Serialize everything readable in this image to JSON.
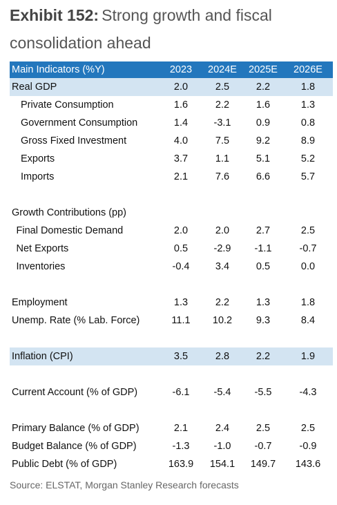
{
  "title": {
    "exhibit": "Exhibit 152:",
    "text": "Strong growth and fiscal consolidation ahead"
  },
  "table": {
    "header": {
      "label": "Main Indicators (%Y)",
      "columns": [
        "2023",
        "2024E",
        "2025E",
        "2026E"
      ]
    },
    "sections": [
      {
        "rows": [
          {
            "label": "Real GDP",
            "values": [
              "2.0",
              "2.5",
              "2.2",
              "1.8"
            ],
            "indent": 0,
            "highlight": true
          },
          {
            "label": "Private Consumption",
            "values": [
              "1.6",
              "2.2",
              "1.6",
              "1.3"
            ],
            "indent": 2,
            "highlight": false
          },
          {
            "label": "Government Consumption",
            "values": [
              "1.4",
              "-3.1",
              "0.9",
              "0.8"
            ],
            "indent": 2,
            "highlight": false
          },
          {
            "label": "Gross Fixed Investment",
            "values": [
              "4.0",
              "7.5",
              "9.2",
              "8.9"
            ],
            "indent": 2,
            "highlight": false
          },
          {
            "label": "Exports",
            "values": [
              "3.7",
              "1.1",
              "5.1",
              "5.2"
            ],
            "indent": 2,
            "highlight": false
          },
          {
            "label": "Imports",
            "values": [
              "2.1",
              "7.6",
              "6.6",
              "5.7"
            ],
            "indent": 2,
            "highlight": false
          }
        ]
      },
      {
        "rows": [
          {
            "label": "Growth Contributions (pp)",
            "values": [],
            "indent": 0,
            "highlight": false
          },
          {
            "label": "Final Domestic Demand",
            "values": [
              "2.0",
              "2.0",
              "2.7",
              "2.5"
            ],
            "indent": 1,
            "highlight": false
          },
          {
            "label": "Net Exports",
            "values": [
              "0.5",
              "-2.9",
              "-1.1",
              "-0.7"
            ],
            "indent": 1,
            "highlight": false
          },
          {
            "label": "Inventories",
            "values": [
              "-0.4",
              "3.4",
              "0.5",
              "0.0"
            ],
            "indent": 1,
            "highlight": false
          }
        ]
      },
      {
        "rows": [
          {
            "label": "Employment",
            "values": [
              "1.3",
              "2.2",
              "1.3",
              "1.8"
            ],
            "indent": 0,
            "highlight": false
          },
          {
            "label": "Unemp. Rate (% Lab. Force)",
            "values": [
              "11.1",
              "10.2",
              "9.3",
              "8.4"
            ],
            "indent": 0,
            "highlight": false
          }
        ]
      },
      {
        "rows": [
          {
            "label": "Inflation (CPI)",
            "values": [
              "3.5",
              "2.8",
              "2.2",
              "1.9"
            ],
            "indent": 0,
            "highlight": true
          }
        ]
      },
      {
        "rows": [
          {
            "label": "Current Account (% of GDP)",
            "values": [
              "-6.1",
              "-5.4",
              "-5.5",
              "-4.3"
            ],
            "indent": 0,
            "highlight": false
          }
        ]
      },
      {
        "rows": [
          {
            "label": "Primary Balance (% of GDP)",
            "values": [
              "2.1",
              "2.4",
              "2.5",
              "2.5"
            ],
            "indent": 0,
            "highlight": false
          },
          {
            "label": "Budget Balance (% of GDP)",
            "values": [
              "-1.3",
              "-1.0",
              "-0.7",
              "-0.9"
            ],
            "indent": 0,
            "highlight": false
          },
          {
            "label": "Public Debt (% of GDP)",
            "values": [
              "163.9",
              "154.1",
              "149.7",
              "143.6"
            ],
            "indent": 0,
            "highlight": false
          }
        ]
      }
    ]
  },
  "source": "Source: ELSTAT, Morgan Stanley Research forecasts"
}
